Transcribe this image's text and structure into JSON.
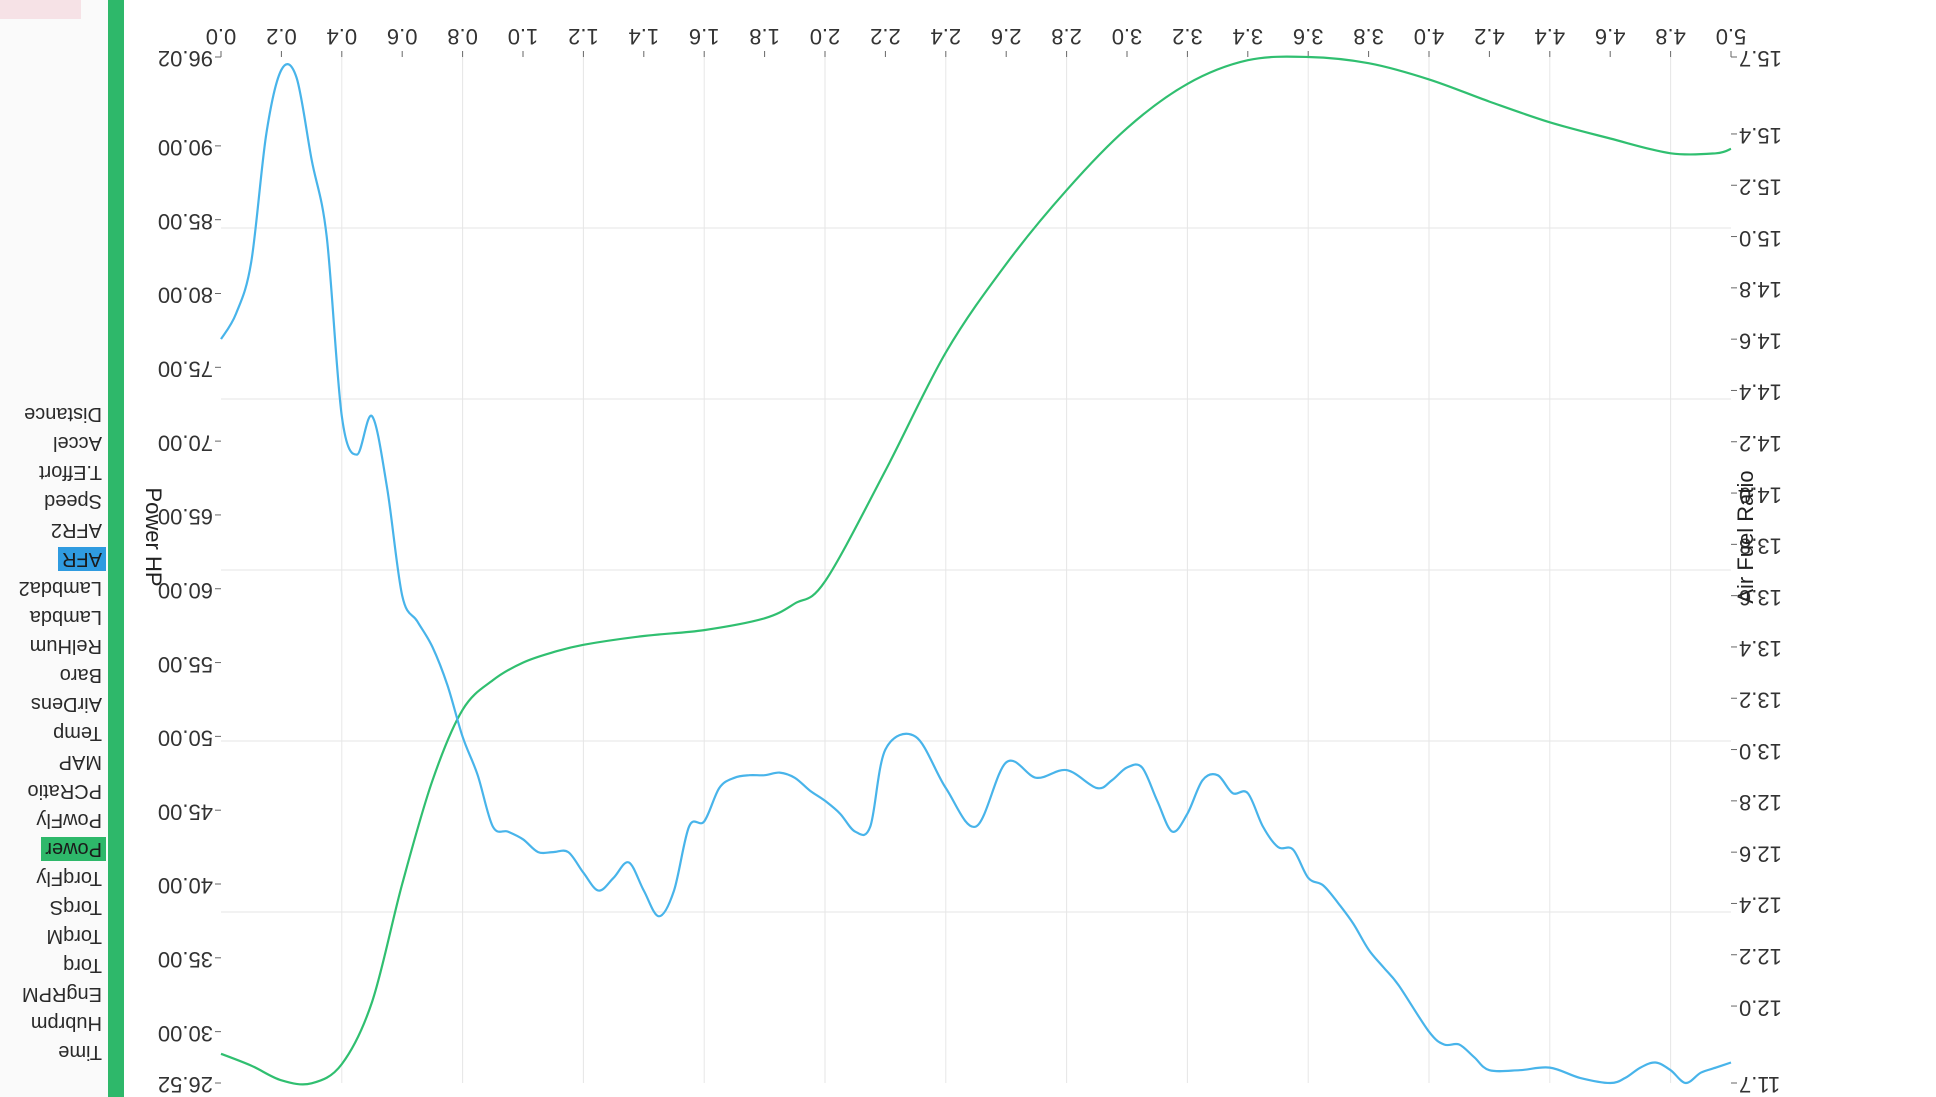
{
  "channels": {
    "items": [
      "Time",
      "Hubrpm",
      "EngRPM",
      "Torq",
      "TorqM",
      "TorqS",
      "TorqFly",
      "Power",
      "PowFly",
      "PCRatio",
      "MAP",
      "Temp",
      "AirDens",
      "Baro",
      "RelHum",
      "Lambda",
      "Lambda2",
      "AFR",
      "AFR2",
      "Speed",
      "T.Effort",
      "Accel",
      "Distance"
    ],
    "highlight_blue": "AFR",
    "highlight_green": "Power"
  },
  "colors": {
    "afr_line": "#48b4ea",
    "power_line": "#30bf70",
    "sidebar_stripe": "#2eb86a",
    "grid": "#e6e6e6"
  },
  "chart_data": {
    "type": "line",
    "rotated_180": true,
    "x": {
      "label": "",
      "range": [
        0.0,
        5.0
      ],
      "ticks": [
        "0.0",
        "0.2",
        "0.4",
        "0.6",
        "0.8",
        "1.0",
        "1.2",
        "1.4",
        "1.6",
        "1.8",
        "2.0",
        "2.2",
        "2.4",
        "2.6",
        "2.8",
        "3.0",
        "3.2",
        "3.4",
        "3.6",
        "3.8",
        "4.0",
        "4.2",
        "4.4",
        "4.6",
        "4.8",
        "5.0"
      ]
    },
    "y_left": {
      "label": "Power HP",
      "range": [
        26.52,
        96.02
      ],
      "ticks": [
        "26.52",
        "30.00",
        "35.00",
        "40.00",
        "45.00",
        "50.00",
        "55.00",
        "60.00",
        "65.00",
        "70.00",
        "75.00",
        "80.00",
        "85.00",
        "90.00",
        "96.02"
      ]
    },
    "y_right": {
      "label": "Air Fuel Ratio",
      "range": [
        11.7,
        15.7
      ],
      "ticks": [
        "11.7",
        "12.0",
        "12.2",
        "12.4",
        "12.6",
        "12.8",
        "13.0",
        "13.2",
        "13.4",
        "13.6",
        "13.8",
        "14.0",
        "14.2",
        "14.4",
        "14.6",
        "14.8",
        "15.0",
        "15.2",
        "15.4",
        "15.7"
      ]
    },
    "series": [
      {
        "axis": "left",
        "x": [
          0.0,
          0.1,
          0.2,
          0.3,
          0.4,
          0.5,
          0.6,
          0.7,
          0.8,
          0.9,
          1.0,
          1.1,
          1.2,
          1.4,
          1.6,
          1.8,
          1.9,
          2.0,
          2.2,
          2.4,
          2.6,
          2.8,
          3.0,
          3.2,
          3.4,
          3.6,
          3.8,
          4.0,
          4.2,
          4.4,
          4.6,
          4.8,
          4.95,
          5.0
        ],
        "y": [
          28.5,
          27.7,
          26.7,
          26.5,
          27.8,
          32.0,
          40.0,
          47.0,
          51.8,
          53.8,
          55.0,
          55.7,
          56.2,
          56.8,
          57.2,
          58.0,
          59.0,
          60.5,
          68.0,
          76.0,
          82.0,
          87.0,
          91.2,
          94.2,
          95.8,
          96.02,
          95.6,
          94.5,
          93.0,
          91.6,
          90.5,
          89.5,
          89.5,
          89.8
        ]
      },
      {
        "axis": "right",
        "x": [
          0.0,
          0.05,
          0.1,
          0.15,
          0.2,
          0.25,
          0.3,
          0.35,
          0.4,
          0.45,
          0.5,
          0.55,
          0.6,
          0.65,
          0.7,
          0.75,
          0.8,
          0.85,
          0.9,
          0.95,
          1.0,
          1.05,
          1.1,
          1.15,
          1.2,
          1.25,
          1.3,
          1.35,
          1.4,
          1.45,
          1.5,
          1.55,
          1.6,
          1.65,
          1.7,
          1.75,
          1.8,
          1.85,
          1.9,
          1.95,
          2.0,
          2.05,
          2.1,
          2.15,
          2.2,
          2.3,
          2.4,
          2.5,
          2.6,
          2.7,
          2.8,
          2.9,
          2.95,
          3.0,
          3.05,
          3.1,
          3.15,
          3.2,
          3.25,
          3.3,
          3.35,
          3.4,
          3.45,
          3.5,
          3.55,
          3.6,
          3.65,
          3.7,
          3.75,
          3.8,
          3.85,
          3.9,
          4.0,
          4.05,
          4.1,
          4.15,
          4.2,
          4.3,
          4.4,
          4.5,
          4.6,
          4.65,
          4.7,
          4.75,
          4.8,
          4.85,
          4.9,
          4.95,
          5.0
        ],
        "y": [
          14.6,
          14.7,
          14.9,
          15.4,
          15.65,
          15.62,
          15.3,
          15.0,
          14.3,
          14.15,
          14.3,
          14.02,
          13.6,
          13.5,
          13.4,
          13.25,
          13.05,
          12.9,
          12.7,
          12.68,
          12.65,
          12.6,
          12.6,
          12.6,
          12.52,
          12.45,
          12.5,
          12.56,
          12.45,
          12.35,
          12.45,
          12.7,
          12.72,
          12.85,
          12.89,
          12.9,
          12.9,
          12.91,
          12.89,
          12.84,
          12.8,
          12.75,
          12.68,
          12.7,
          13.0,
          13.05,
          12.85,
          12.7,
          12.95,
          12.89,
          12.92,
          12.85,
          12.88,
          12.93,
          12.93,
          12.8,
          12.68,
          12.75,
          12.88,
          12.9,
          12.83,
          12.83,
          12.7,
          12.62,
          12.61,
          12.5,
          12.47,
          12.4,
          12.32,
          12.22,
          12.15,
          12.08,
          11.9,
          11.85,
          11.85,
          11.8,
          11.75,
          11.75,
          11.76,
          11.72,
          11.7,
          11.72,
          11.76,
          11.78,
          11.75,
          11.7,
          11.74,
          11.76,
          11.78
        ]
      }
    ]
  }
}
